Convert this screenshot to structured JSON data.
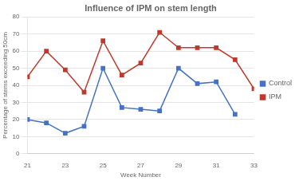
{
  "chart_data": {
    "type": "line",
    "title": "Influence of IPM on stem length",
    "x_label": "Week Number",
    "y_label": "Percentage of stems exceeding 50cm",
    "x": [
      21,
      22,
      23,
      24,
      25,
      26,
      27,
      28,
      29,
      30,
      31,
      32,
      33
    ],
    "series": [
      {
        "name": "Control",
        "color": "#4472c4",
        "marker": "square",
        "values": [
          20,
          18,
          12,
          16,
          50,
          27,
          26,
          25,
          50,
          41,
          42,
          23,
          null
        ]
      },
      {
        "name": "IPM",
        "color": "#c0392b",
        "marker": "square",
        "values": [
          45,
          60,
          49,
          36,
          66,
          46,
          53,
          71,
          62,
          62,
          62,
          55,
          38
        ]
      }
    ],
    "xlim": [
      21,
      33
    ],
    "xticks": [
      21,
      23,
      25,
      27,
      29,
      31,
      33
    ],
    "ylim": [
      0,
      80
    ],
    "yticks": [
      0,
      10,
      20,
      30,
      40,
      50,
      60,
      70,
      80
    ],
    "grid": "y",
    "legend": "right"
  }
}
